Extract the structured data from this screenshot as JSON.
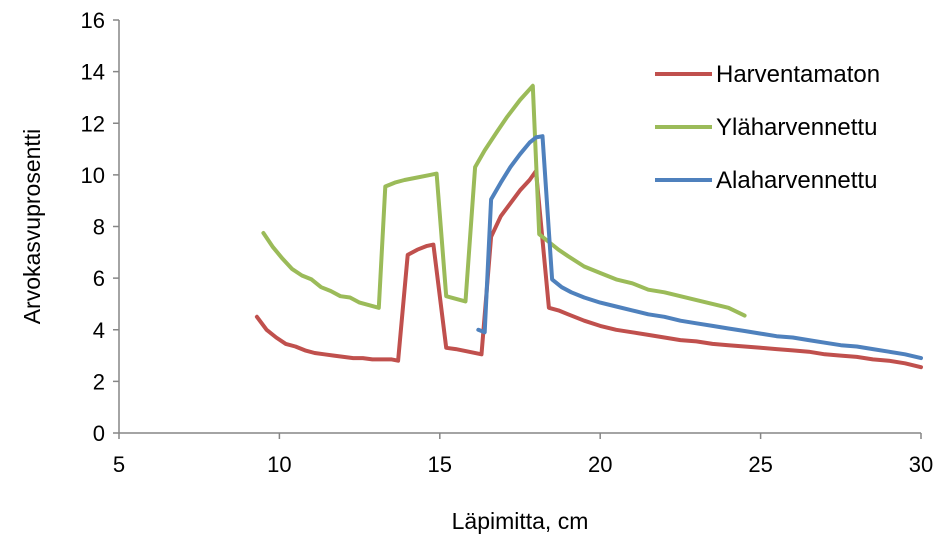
{
  "chart_data": {
    "type": "line",
    "title": "",
    "xlabel": "Läpimitta, cm",
    "ylabel": "Arvokasvuprosentti",
    "xlim": [
      5,
      30
    ],
    "ylim": [
      0,
      16
    ],
    "xticks": [
      5,
      10,
      15,
      20,
      25,
      30
    ],
    "yticks": [
      0,
      2,
      4,
      6,
      8,
      10,
      12,
      14,
      16
    ],
    "grid": false,
    "legend_position": "top-right",
    "series": [
      {
        "name": "Harventamaton",
        "color": "#c0504d",
        "x": [
          9.3,
          9.6,
          9.9,
          10.2,
          10.5,
          10.8,
          11.1,
          11.4,
          11.7,
          12.0,
          12.3,
          12.6,
          12.9,
          13.2,
          13.5,
          13.7,
          14.0,
          14.3,
          14.6,
          14.8,
          15.2,
          15.5,
          15.9,
          16.3,
          16.6,
          16.9,
          17.2,
          17.5,
          17.8,
          18.0,
          18.4,
          18.7,
          19.0,
          19.5,
          20.0,
          20.5,
          21.0,
          21.5,
          22.0,
          22.5,
          23.0,
          23.5,
          24.0,
          24.5,
          25.0,
          25.5,
          26.0,
          26.5,
          27.0,
          27.5,
          28.0,
          28.5,
          29.0,
          29.5,
          30.0
        ],
        "y": [
          4.5,
          4.0,
          3.7,
          3.45,
          3.35,
          3.2,
          3.1,
          3.05,
          3.0,
          2.95,
          2.9,
          2.9,
          2.85,
          2.85,
          2.85,
          2.8,
          6.9,
          7.1,
          7.25,
          7.3,
          3.3,
          3.25,
          3.15,
          3.05,
          7.6,
          8.4,
          8.9,
          9.4,
          9.8,
          10.15,
          4.85,
          4.75,
          4.6,
          4.35,
          4.15,
          4.0,
          3.9,
          3.8,
          3.7,
          3.6,
          3.55,
          3.45,
          3.4,
          3.35,
          3.3,
          3.25,
          3.2,
          3.15,
          3.05,
          3.0,
          2.95,
          2.85,
          2.8,
          2.7,
          2.55
        ]
      },
      {
        "name": "Yläharvennettu",
        "color": "#9bbb59",
        "x": [
          9.5,
          9.8,
          10.1,
          10.4,
          10.7,
          11.0,
          11.3,
          11.6,
          11.9,
          12.2,
          12.5,
          12.8,
          13.1,
          13.3,
          13.6,
          13.9,
          14.3,
          14.7,
          14.9,
          15.2,
          15.5,
          15.8,
          16.1,
          16.4,
          16.8,
          17.1,
          17.5,
          17.9,
          18.1,
          18.4,
          18.7,
          19.0,
          19.5,
          20.0,
          20.5,
          21.0,
          21.5,
          22.0,
          22.5,
          23.0,
          23.5,
          24.0,
          24.5
        ],
        "y": [
          7.75,
          7.2,
          6.75,
          6.35,
          6.1,
          5.95,
          5.65,
          5.5,
          5.3,
          5.25,
          5.05,
          4.95,
          4.85,
          9.55,
          9.7,
          9.8,
          9.9,
          10.0,
          10.05,
          5.3,
          5.2,
          5.1,
          10.3,
          10.95,
          11.7,
          12.25,
          12.9,
          13.45,
          7.7,
          7.4,
          7.1,
          6.85,
          6.45,
          6.2,
          5.95,
          5.8,
          5.55,
          5.45,
          5.3,
          5.15,
          5.0,
          4.85,
          4.55
        ]
      },
      {
        "name": "Alaharvennettu",
        "color": "#4f81bd",
        "x": [
          16.2,
          16.4,
          16.6,
          16.9,
          17.2,
          17.5,
          17.8,
          18.0,
          18.2,
          18.5,
          18.8,
          19.1,
          19.5,
          20.0,
          20.5,
          21.0,
          21.5,
          22.0,
          22.5,
          23.0,
          23.5,
          24.0,
          24.5,
          25.0,
          25.5,
          26.0,
          26.5,
          27.0,
          27.5,
          28.0,
          28.5,
          29.0,
          29.5,
          30.0
        ],
        "y": [
          4.0,
          3.9,
          9.05,
          9.7,
          10.3,
          10.8,
          11.25,
          11.45,
          11.5,
          5.95,
          5.65,
          5.45,
          5.25,
          5.05,
          4.9,
          4.75,
          4.6,
          4.5,
          4.35,
          4.25,
          4.15,
          4.05,
          3.95,
          3.85,
          3.75,
          3.7,
          3.6,
          3.5,
          3.4,
          3.35,
          3.25,
          3.15,
          3.05,
          2.9
        ]
      }
    ]
  }
}
